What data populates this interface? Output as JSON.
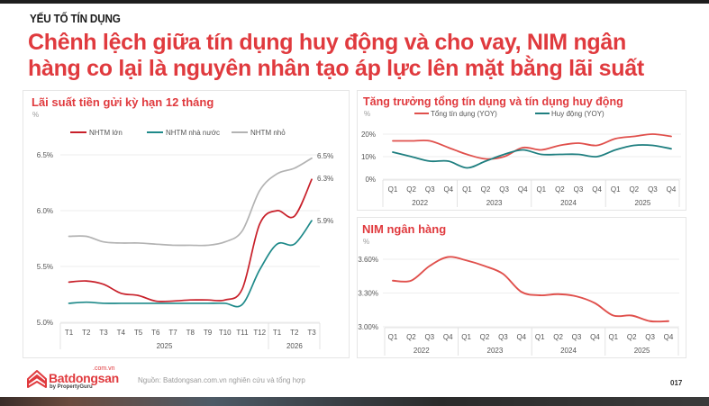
{
  "header": {
    "eyebrow": "YẾU TỐ TÍN DỤNG",
    "headline_line1": "Chênh lệch giữa tín dụng huy động và cho vay, NIM ngân",
    "headline_line2": "hàng co lại là nguyên nhân tạo áp lực lên mặt bằng lãi suất"
  },
  "colors": {
    "brand_red": "#e03a3e",
    "nhtm_lon": "#c8202a",
    "nhtm_nha_nuoc": "#1f8a8a",
    "nhtm_nho": "#b3b3b3",
    "tong_tin_dung": "#e0504c",
    "huy_dong": "#1f7f80",
    "nim": "#e0504c"
  },
  "panels": {
    "deposit": {
      "title": "Lãi suất tiền gửi kỳ hạn 12 tháng",
      "unit": "%",
      "legend": [
        "NHTM lớn",
        "NHTM nhà nước",
        "NHTM nhỏ"
      ],
      "yticks": [
        "6.5%",
        "6.0%",
        "5.5%",
        "5.0%"
      ],
      "xticks": [
        "T1",
        "T2",
        "T3",
        "T4",
        "T5",
        "T6",
        "T7",
        "T8",
        "T9",
        "T10",
        "T11",
        "T12",
        "T1",
        "T2",
        "T3"
      ],
      "groups": [
        "2025",
        "2026"
      ],
      "end_labels": [
        "6.5%",
        "6.3%",
        "5.9%"
      ]
    },
    "credit": {
      "title": "Tăng trưởng tổng tín dụng và tín dụng huy động",
      "unit": "%",
      "legend": [
        "Tổng tín dụng (YOY)",
        "Huy động (YOY)"
      ],
      "yticks": [
        "20%",
        "10%",
        "0%"
      ],
      "xticks": [
        "Q1",
        "Q2",
        "Q3",
        "Q4",
        "Q1",
        "Q2",
        "Q3",
        "Q4",
        "Q1",
        "Q2",
        "Q3",
        "Q4",
        "Q1",
        "Q2",
        "Q3",
        "Q4"
      ],
      "groups": [
        "2022",
        "2023",
        "2024",
        "2025"
      ]
    },
    "nim": {
      "title": "NIM ngân hàng",
      "unit": "%",
      "yticks": [
        "3.60%",
        "3.30%",
        "3.00%"
      ],
      "xticks": [
        "Q1",
        "Q2",
        "Q3",
        "Q4",
        "Q1",
        "Q2",
        "Q3",
        "Q4",
        "Q1",
        "Q2",
        "Q3",
        "Q4",
        "Q1",
        "Q2",
        "Q3",
        "Q4"
      ],
      "groups": [
        "2022",
        "2023",
        "2024",
        "2025"
      ]
    }
  },
  "footer": {
    "logo_main": "Batdongsan",
    "logo_domain": ".com.vn",
    "logo_sub": "by PropertyGuru",
    "source": "Nguồn: Batdongsan.com.vn nghiên cứu và tổng hợp",
    "page_number": "017"
  },
  "chart_data": [
    {
      "type": "line",
      "title": "Lãi suất tiền gửi kỳ hạn 12 tháng",
      "ylabel": "%",
      "xlabel": "",
      "categories": [
        "T1/2025",
        "T2/2025",
        "T3/2025",
        "T4/2025",
        "T5/2025",
        "T6/2025",
        "T7/2025",
        "T8/2025",
        "T9/2025",
        "T10/2025",
        "T11/2025",
        "T12/2025",
        "T1/2026",
        "T2/2026",
        "T3/2026"
      ],
      "series": [
        {
          "name": "NHTM lớn",
          "values": [
            5.36,
            5.37,
            5.34,
            5.26,
            5.24,
            5.19,
            5.19,
            5.2,
            5.2,
            5.2,
            5.3,
            5.88,
            6.0,
            5.95,
            6.28
          ]
        },
        {
          "name": "NHTM nhà nước",
          "values": [
            5.17,
            5.18,
            5.17,
            5.17,
            5.17,
            5.17,
            5.17,
            5.17,
            5.17,
            5.17,
            5.16,
            5.47,
            5.7,
            5.7,
            5.91
          ]
        },
        {
          "name": "NHTM nhỏ",
          "values": [
            5.77,
            5.77,
            5.72,
            5.71,
            5.71,
            5.7,
            5.69,
            5.69,
            5.69,
            5.72,
            5.82,
            6.18,
            6.33,
            6.38,
            6.47
          ]
        }
      ],
      "end_labels": {
        "NHTM nhỏ": "6.5%",
        "NHTM lớn": "6.3%",
        "NHTM nhà nước": "5.9%"
      },
      "ylim": [
        5.0,
        6.5
      ],
      "yticks": [
        5.0,
        5.5,
        6.0,
        6.5
      ],
      "grid": true,
      "legend_position": "top"
    },
    {
      "type": "line",
      "title": "Tăng trưởng tổng tín dụng và tín dụng huy động",
      "ylabel": "%",
      "categories": [
        "Q1/2022",
        "Q2/2022",
        "Q3/2022",
        "Q4/2022",
        "Q1/2023",
        "Q2/2023",
        "Q3/2023",
        "Q4/2023",
        "Q1/2024",
        "Q2/2024",
        "Q3/2024",
        "Q4/2024",
        "Q1/2025",
        "Q2/2025",
        "Q3/2025",
        "Q4/2025"
      ],
      "series": [
        {
          "name": "Tổng tín dụng (YOY)",
          "values": [
            17,
            17,
            17,
            14,
            11,
            9,
            10,
            14,
            13,
            15,
            16,
            15,
            18,
            19,
            20,
            19
          ]
        },
        {
          "name": "Huy động (YOY)",
          "values": [
            12,
            10,
            8,
            8,
            5,
            8,
            11,
            13,
            11,
            11,
            11,
            10,
            13,
            15,
            15,
            13.5
          ]
        }
      ],
      "ylim": [
        0,
        20
      ],
      "yticks": [
        0,
        10,
        20
      ],
      "grid": true,
      "legend_position": "top"
    },
    {
      "type": "line",
      "title": "NIM ngân hàng",
      "ylabel": "%",
      "categories": [
        "Q1/2022",
        "Q2/2022",
        "Q3/2022",
        "Q4/2022",
        "Q1/2023",
        "Q2/2023",
        "Q3/2023",
        "Q4/2023",
        "Q1/2024",
        "Q2/2024",
        "Q3/2024",
        "Q4/2024",
        "Q1/2025",
        "Q2/2025",
        "Q3/2025",
        "Q4/2025"
      ],
      "series": [
        {
          "name": "NIM",
          "values": [
            3.41,
            3.41,
            3.54,
            3.62,
            3.59,
            3.54,
            3.47,
            3.31,
            3.28,
            3.29,
            3.27,
            3.21,
            3.1,
            3.1,
            3.05,
            3.05
          ]
        }
      ],
      "ylim": [
        3.0,
        3.6
      ],
      "yticks": [
        3.0,
        3.3,
        3.6
      ],
      "grid": true
    }
  ]
}
